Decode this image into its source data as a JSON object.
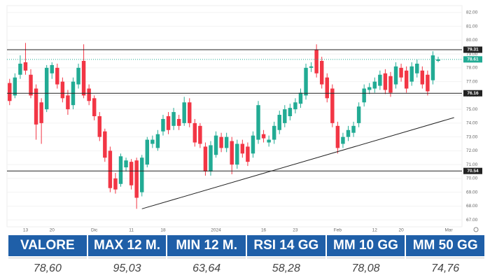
{
  "chart_data": {
    "type": "candlestick",
    "categories": [
      null,
      null,
      null,
      "13",
      null,
      null,
      null,
      null,
      "20",
      null,
      null,
      null,
      null,
      null,
      null,
      null,
      "Dic",
      null,
      null,
      null,
      null,
      null,
      null,
      "11",
      null,
      null,
      null,
      null,
      null,
      "18",
      null,
      null,
      null,
      null,
      null,
      null,
      null,
      null,
      null,
      "2024",
      null,
      null,
      null,
      null,
      null,
      null,
      null,
      null,
      "16",
      null,
      null,
      null,
      null,
      null,
      "23",
      null,
      null,
      null,
      null,
      null,
      null,
      null,
      "Feb",
      null,
      null,
      null,
      null,
      null,
      null,
      "12",
      null,
      null,
      null,
      null,
      "20",
      null,
      null,
      null,
      null,
      null,
      null,
      null,
      null,
      "Mar",
      null,
      null
    ],
    "open": [
      76.9,
      76.0,
      77.5,
      78.4,
      77.5,
      76.5,
      75.5,
      75.0,
      77.6,
      78.0,
      77.0,
      76.0,
      75.3,
      76.8,
      78.5,
      76.5,
      75.8,
      74.5,
      73.4,
      72.0,
      70.0,
      69.6,
      70.8,
      71.2,
      71.3,
      69.0,
      71.0,
      72.5,
      72.2,
      73.4,
      74.5,
      73.8,
      74.3,
      74.0,
      75.5,
      74.0,
      73.8,
      72.3,
      70.5,
      71.7,
      73.0,
      72.2,
      72.7,
      71.0,
      72.5,
      72.3,
      71.8,
      72.8,
      73.2,
      72.6,
      72.8,
      73.5,
      74.0,
      74.5,
      75.0,
      75.4,
      76.0,
      78.0,
      79.3,
      78.5,
      77.3,
      76.5,
      73.8,
      72.5,
      73.0,
      73.3,
      74.0,
      75.5,
      76.4,
      76.5,
      76.7,
      77.6,
      77.4,
      76.8,
      78.0,
      77.8,
      77.0,
      77.6,
      77.8,
      77.5,
      77.1,
      78.5,
      null,
      null,
      null,
      null
    ],
    "high": [
      77.2,
      77.6,
      78.9,
      79.8,
      77.9,
      76.8,
      75.8,
      78.2,
      78.4,
      78.3,
      77.3,
      76.4,
      77.3,
      78.3,
      79.7,
      76.8,
      76.0,
      74.8,
      73.6,
      72.3,
      70.4,
      71.8,
      71.5,
      71.4,
      71.5,
      71.7,
      73.0,
      73.1,
      73.5,
      74.6,
      74.8,
      75.1,
      74.6,
      75.9,
      75.8,
      74.3,
      74.0,
      72.6,
      72.7,
      73.4,
      73.3,
      73.3,
      73.0,
      72.8,
      72.8,
      72.6,
      73.4,
      75.6,
      73.5,
      73.1,
      74.1,
      74.9,
      75.3,
      75.4,
      75.8,
      76.5,
      78.3,
      78.4,
      79.7,
      78.8,
      77.6,
      76.8,
      74.1,
      73.3,
      73.8,
      74.1,
      75.5,
      76.8,
      76.9,
      77.3,
      77.8,
      77.9,
      77.7,
      78.4,
      78.3,
      78.1,
      78.4,
      78.6,
      78.1,
      77.8,
      79.2,
      78.8,
      null,
      null,
      null,
      null
    ],
    "low": [
      75.3,
      75.8,
      77.2,
      77.5,
      75.8,
      72.8,
      72.5,
      74.8,
      77.2,
      76.5,
      75.5,
      74.6,
      75.0,
      76.5,
      75.8,
      75.3,
      74.2,
      72.7,
      71.2,
      69.0,
      68.9,
      69.4,
      70.5,
      69.2,
      67.8,
      68.7,
      70.8,
      72.2,
      72.0,
      73.1,
      73.2,
      73.5,
      73.5,
      73.8,
      73.7,
      72.3,
      72.2,
      70.2,
      70.2,
      71.5,
      71.9,
      71.9,
      70.3,
      70.7,
      71.5,
      70.9,
      71.5,
      72.5,
      72.6,
      72.3,
      72.5,
      73.2,
      73.7,
      74.2,
      74.7,
      75.1,
      75.7,
      77.7,
      77.3,
      76.5,
      75.5,
      73.7,
      71.8,
      72.2,
      72.7,
      73.0,
      73.7,
      75.2,
      76.1,
      76.2,
      76.4,
      76.1,
      75.9,
      76.5,
      77.0,
      76.2,
      76.7,
      77.3,
      76.5,
      76.0,
      76.8,
      78.4,
      null,
      null,
      null,
      null
    ],
    "close": [
      75.6,
      77.3,
      78.3,
      77.8,
      76.0,
      73.9,
      74.0,
      78.0,
      78.2,
      76.8,
      75.8,
      75.0,
      77.0,
      78.0,
      76.0,
      75.6,
      74.5,
      73.0,
      71.5,
      69.3,
      69.2,
      71.6,
      71.3,
      69.5,
      68.6,
      71.5,
      72.8,
      72.8,
      73.2,
      74.3,
      73.5,
      74.8,
      73.8,
      75.5,
      74.0,
      72.6,
      72.5,
      70.5,
      72.4,
      73.1,
      72.2,
      73.0,
      71.0,
      72.5,
      71.8,
      71.2,
      73.1,
      75.3,
      72.9,
      72.8,
      73.8,
      74.6,
      75.0,
      75.1,
      75.5,
      76.2,
      78.0,
      78.1,
      77.6,
      76.8,
      75.8,
      74.0,
      72.2,
      73.0,
      73.5,
      73.8,
      75.2,
      76.5,
      76.6,
      77.0,
      77.5,
      76.4,
      76.2,
      78.1,
      77.3,
      76.5,
      78.1,
      78.3,
      76.8,
      76.3,
      78.9,
      78.61,
      null,
      null,
      null,
      null
    ],
    "up_color": "#22ab94",
    "down_color": "#f23645",
    "ylim": [
      66.5,
      82.5
    ],
    "yticks": [
      {
        "value": 67,
        "label": "67.00"
      },
      {
        "value": 68,
        "label": "68.00"
      },
      {
        "value": 69,
        "label": "69.00"
      },
      {
        "value": 70,
        "label": "70.00"
      },
      {
        "value": 71,
        "label": "71.00"
      },
      {
        "value": 72,
        "label": "72.00"
      },
      {
        "value": 73,
        "label": "73.00"
      },
      {
        "value": 74,
        "label": "74.00"
      },
      {
        "value": 75,
        "label": "75.00"
      },
      {
        "value": 76,
        "label": "76.00"
      },
      {
        "value": 77,
        "label": "77.00"
      },
      {
        "value": 78,
        "label": "78.00"
      },
      {
        "value": 79,
        "label": "79.00"
      },
      {
        "value": 80,
        "label": "80.00"
      },
      {
        "value": 81,
        "label": "81.00"
      },
      {
        "value": 82,
        "label": "82.00"
      }
    ],
    "levels": [
      79.31,
      76.16,
      70.54
    ],
    "last_price": 78.61,
    "trendline": {
      "from": [
        25,
        67.8
      ],
      "to": [
        84,
        74.4
      ]
    }
  },
  "table": {
    "headers": [
      "VALORE",
      "MAX 12 M.",
      "MIN 12 M.",
      "RSI 14 GG",
      "MM 10 GG",
      "MM 50 GG"
    ],
    "values": [
      "78,60",
      "95,03",
      "63,64",
      "58,28",
      "78,08",
      "74,76"
    ]
  }
}
